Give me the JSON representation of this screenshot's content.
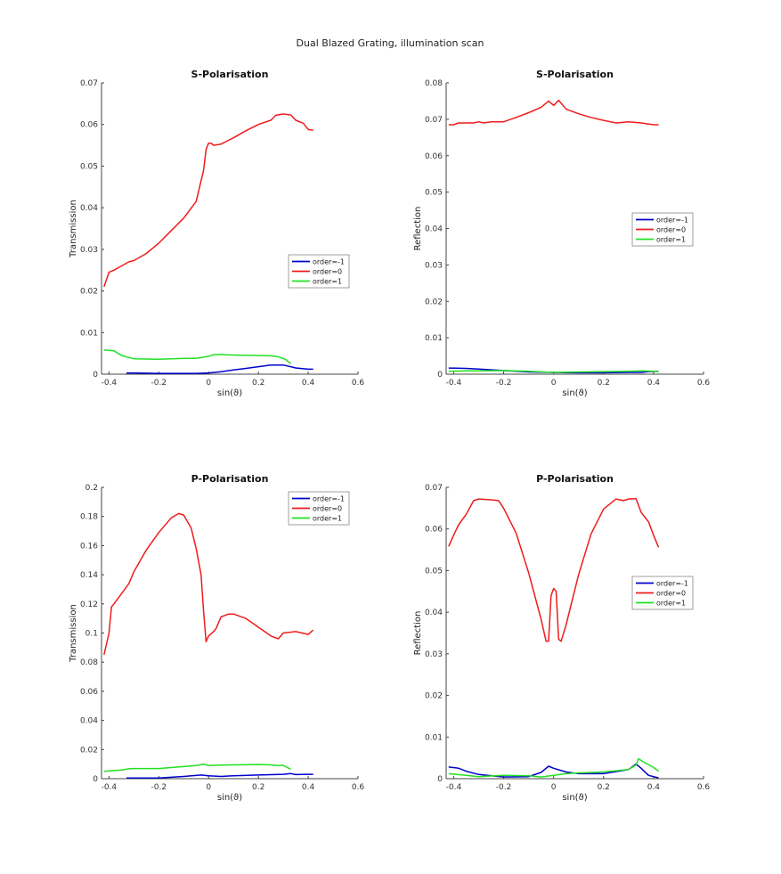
{
  "figure": {
    "title": "Dual Blazed Grating, illumination scan"
  },
  "colors": {
    "order_m1": "#0000cc",
    "order_0": "#ee1c1c",
    "order_p1": "#22e022",
    "axis": "#444444"
  },
  "chart_data": [
    {
      "type": "line",
      "title": "S-Polarisation",
      "xlabel": "sin(ϑ)",
      "ylabel": "Transmission",
      "xlim": [
        -0.43,
        0.6
      ],
      "ylim": [
        0,
        0.07
      ],
      "xticks": [
        "-0.4",
        "-0.2",
        "0",
        "0.2",
        "0.4",
        "0.6"
      ],
      "xtick_values": [
        -0.4,
        -0.2,
        0,
        0.2,
        0.4,
        0.6
      ],
      "yticks": [
        "0",
        "0.01",
        "0.02",
        "0.03",
        "0.04",
        "0.05",
        "0.06",
        "0.07"
      ],
      "ytick_values": [
        0,
        0.01,
        0.02,
        0.03,
        0.04,
        0.05,
        0.06,
        0.07
      ],
      "grid": false,
      "legend": "center-right",
      "series": [
        {
          "name": "order=-1",
          "color": "#0000cc",
          "x": [
            -0.33,
            -0.3,
            -0.2,
            -0.1,
            -0.05,
            0,
            0.05,
            0.1,
            0.15,
            0.2,
            0.25,
            0.3,
            0.35,
            0.4,
            0.42
          ],
          "y": [
            0.0003,
            0.0003,
            0.0002,
            0.0002,
            0.0002,
            0.0003,
            0.0006,
            0.001,
            0.0014,
            0.0018,
            0.0022,
            0.0022,
            0.0015,
            0.0012,
            0.0012
          ]
        },
        {
          "name": "order=0",
          "color": "#ee1c1c",
          "x": [
            -0.42,
            -0.4,
            -0.38,
            -0.35,
            -0.32,
            -0.3,
            -0.25,
            -0.2,
            -0.15,
            -0.1,
            -0.05,
            -0.02,
            -0.01,
            0,
            0.01,
            0.02,
            0.05,
            0.1,
            0.15,
            0.2,
            0.25,
            0.27,
            0.3,
            0.33,
            0.35,
            0.38,
            0.4,
            0.42
          ],
          "y": [
            0.021,
            0.0245,
            0.025,
            0.026,
            0.027,
            0.0273,
            0.029,
            0.0315,
            0.0345,
            0.0375,
            0.0415,
            0.049,
            0.054,
            0.0555,
            0.0555,
            0.055,
            0.0553,
            0.0568,
            0.0585,
            0.06,
            0.061,
            0.0622,
            0.0625,
            0.0623,
            0.061,
            0.0603,
            0.0588,
            0.0586
          ]
        },
        {
          "name": "order=1",
          "color": "#22e022",
          "x": [
            -0.42,
            -0.38,
            -0.35,
            -0.3,
            -0.2,
            -0.1,
            -0.05,
            0,
            0.02,
            0.05,
            0.1,
            0.2,
            0.25,
            0.28,
            0.31,
            0.33
          ],
          "y": [
            0.0058,
            0.0056,
            0.0045,
            0.0037,
            0.0036,
            0.0038,
            0.0038,
            0.0043,
            0.0047,
            0.0047,
            0.0046,
            0.0045,
            0.0044,
            0.0042,
            0.0035,
            0.0025
          ]
        }
      ]
    },
    {
      "type": "line",
      "title": "S-Polarisation",
      "xlabel": "sin(ϑ)",
      "ylabel": "Reflection",
      "xlim": [
        -0.43,
        0.6
      ],
      "ylim": [
        0,
        0.08
      ],
      "xticks": [
        "-0.4",
        "-0.2",
        "0",
        "0.2",
        "0.4",
        "0.6"
      ],
      "xtick_values": [
        -0.4,
        -0.2,
        0,
        0.2,
        0.4,
        0.6
      ],
      "yticks": [
        "0",
        "0.01",
        "0.02",
        "0.03",
        "0.04",
        "0.05",
        "0.06",
        "0.07",
        "0.08"
      ],
      "ytick_values": [
        0,
        0.01,
        0.02,
        0.03,
        0.04,
        0.05,
        0.06,
        0.07,
        0.08
      ],
      "grid": false,
      "legend": "center-right",
      "series": [
        {
          "name": "order=-1",
          "color": "#0000cc",
          "x": [
            -0.42,
            -0.35,
            -0.3,
            -0.2,
            -0.1,
            0,
            0.1,
            0.2,
            0.3,
            0.35,
            0.38,
            0.42
          ],
          "y": [
            0.0017,
            0.0016,
            0.0014,
            0.001,
            0.0006,
            0.0005,
            0.0004,
            0.0004,
            0.0005,
            0.0005,
            0.0007,
            0.0008
          ]
        },
        {
          "name": "order=0",
          "color": "#ee1c1c",
          "x": [
            -0.42,
            -0.4,
            -0.38,
            -0.35,
            -0.32,
            -0.3,
            -0.28,
            -0.25,
            -0.22,
            -0.2,
            -0.15,
            -0.1,
            -0.05,
            -0.02,
            0,
            0.02,
            0.05,
            0.1,
            0.15,
            0.2,
            0.25,
            0.3,
            0.35,
            0.4,
            0.42
          ],
          "y": [
            0.0685,
            0.0685,
            0.069,
            0.069,
            0.069,
            0.0693,
            0.069,
            0.0693,
            0.0693,
            0.0693,
            0.0705,
            0.0718,
            0.0733,
            0.075,
            0.0738,
            0.0752,
            0.0728,
            0.0715,
            0.0705,
            0.0697,
            0.069,
            0.0693,
            0.069,
            0.0685,
            0.0685
          ]
        },
        {
          "name": "order=1",
          "color": "#22e022",
          "x": [
            -0.42,
            -0.35,
            -0.3,
            -0.2,
            -0.1,
            0,
            0.1,
            0.2,
            0.3,
            0.35,
            0.4,
            0.42
          ],
          "y": [
            0.0008,
            0.0009,
            0.0009,
            0.001,
            0.0008,
            0.0005,
            0.0006,
            0.0007,
            0.0008,
            0.0009,
            0.0008,
            0.0007
          ]
        }
      ]
    },
    {
      "type": "line",
      "title": "P-Polarisation",
      "xlabel": "sin(ϑ)",
      "ylabel": "Transmission",
      "xlim": [
        -0.43,
        0.6
      ],
      "ylim": [
        0,
        0.2
      ],
      "xticks": [
        "-0.4",
        "-0.2",
        "0",
        "0.2",
        "0.4",
        "0.6"
      ],
      "xtick_values": [
        -0.4,
        -0.2,
        0,
        0.2,
        0.4,
        0.6
      ],
      "yticks": [
        "0",
        "0.02",
        "0.04",
        "0.06",
        "0.08",
        "0.1",
        "0.12",
        "0.14",
        "0.16",
        "0.18",
        "0.2"
      ],
      "ytick_values": [
        0,
        0.02,
        0.04,
        0.06,
        0.08,
        0.1,
        0.12,
        0.14,
        0.16,
        0.18,
        0.2
      ],
      "grid": false,
      "legend": "top-right",
      "series": [
        {
          "name": "order=-1",
          "color": "#0000cc",
          "x": [
            -0.33,
            -0.3,
            -0.2,
            -0.1,
            -0.03,
            0,
            0.05,
            0.1,
            0.2,
            0.3,
            0.33,
            0.35,
            0.4,
            0.42
          ],
          "y": [
            0.0005,
            0.0005,
            0.0005,
            0.0015,
            0.0025,
            0.002,
            0.0015,
            0.002,
            0.0025,
            0.003,
            0.0035,
            0.0028,
            0.003,
            0.003
          ]
        },
        {
          "name": "order=0",
          "color": "#ee1c1c",
          "x": [
            -0.42,
            -0.4,
            -0.39,
            -0.38,
            -0.35,
            -0.32,
            -0.3,
            -0.25,
            -0.2,
            -0.15,
            -0.12,
            -0.1,
            -0.07,
            -0.05,
            -0.03,
            -0.02,
            -0.01,
            0,
            0.02,
            0.03,
            0.05,
            0.08,
            0.1,
            0.15,
            0.2,
            0.25,
            0.28,
            0.3,
            0.35,
            0.4,
            0.42
          ],
          "y": [
            0.085,
            0.1,
            0.118,
            0.12,
            0.127,
            0.134,
            0.142,
            0.157,
            0.169,
            0.179,
            0.182,
            0.181,
            0.172,
            0.158,
            0.14,
            0.115,
            0.094,
            0.098,
            0.101,
            0.103,
            0.111,
            0.113,
            0.113,
            0.11,
            0.104,
            0.098,
            0.096,
            0.1,
            0.101,
            0.099,
            0.102
          ]
        },
        {
          "name": "order=1",
          "color": "#22e022",
          "x": [
            -0.42,
            -0.35,
            -0.32,
            -0.3,
            -0.2,
            -0.1,
            -0.05,
            -0.02,
            0,
            0.05,
            0.1,
            0.2,
            0.25,
            0.28,
            0.3,
            0.33
          ],
          "y": [
            0.005,
            0.006,
            0.0068,
            0.007,
            0.007,
            0.0083,
            0.009,
            0.01,
            0.009,
            0.0093,
            0.0095,
            0.0097,
            0.0095,
            0.009,
            0.0092,
            0.0065
          ]
        }
      ]
    },
    {
      "type": "line",
      "title": "P-Polarisation",
      "xlabel": "sin(ϑ)",
      "ylabel": "Reflection",
      "xlim": [
        -0.43,
        0.6
      ],
      "ylim": [
        0,
        0.07
      ],
      "xticks": [
        "-0.4",
        "-0.2",
        "0",
        "0.2",
        "0.4",
        "0.6"
      ],
      "xtick_values": [
        -0.4,
        -0.2,
        0,
        0.2,
        0.4,
        0.6
      ],
      "yticks": [
        "0",
        "0.01",
        "0.02",
        "0.03",
        "0.04",
        "0.05",
        "0.06",
        "0.07"
      ],
      "ytick_values": [
        0,
        0.01,
        0.02,
        0.03,
        0.04,
        0.05,
        0.06,
        0.07
      ],
      "grid": false,
      "legend": "center-right",
      "series": [
        {
          "name": "order=-1",
          "color": "#0000cc",
          "x": [
            -0.42,
            -0.38,
            -0.35,
            -0.3,
            -0.2,
            -0.1,
            -0.05,
            -0.02,
            0,
            0.05,
            0.1,
            0.2,
            0.3,
            0.33,
            0.35,
            0.38,
            0.42
          ],
          "y": [
            0.0028,
            0.0025,
            0.0018,
            0.001,
            0.0004,
            0.0005,
            0.0015,
            0.003,
            0.0025,
            0.0016,
            0.0012,
            0.0012,
            0.0022,
            0.0035,
            0.0025,
            0.0008,
            0.0002
          ]
        },
        {
          "name": "order=1",
          "color": "#22e022",
          "x": [
            -0.42,
            -0.35,
            -0.3,
            -0.2,
            -0.1,
            -0.05,
            0,
            0.05,
            0.1,
            0.2,
            0.3,
            0.33,
            0.34,
            0.36,
            0.4,
            0.42
          ],
          "y": [
            0.0012,
            0.0008,
            0.0005,
            0.0008,
            0.0007,
            0.0004,
            0.0008,
            0.0012,
            0.0014,
            0.0016,
            0.0022,
            0.0033,
            0.0048,
            0.004,
            0.0027,
            0.0018
          ]
        },
        {
          "name": "order=0",
          "color": "#ee1c1c",
          "x": [
            -0.42,
            -0.4,
            -0.38,
            -0.35,
            -0.32,
            -0.3,
            -0.25,
            -0.22,
            -0.2,
            -0.15,
            -0.1,
            -0.05,
            -0.03,
            -0.02,
            -0.01,
            0,
            0.01,
            0.02,
            0.03,
            0.05,
            0.1,
            0.15,
            0.2,
            0.25,
            0.28,
            0.3,
            0.33,
            0.35,
            0.38,
            0.4,
            0.42
          ],
          "y": [
            0.0558,
            0.0585,
            0.061,
            0.0635,
            0.0668,
            0.0672,
            0.067,
            0.0668,
            0.065,
            0.059,
            0.0495,
            0.0383,
            0.033,
            0.033,
            0.044,
            0.0457,
            0.045,
            0.0335,
            0.033,
            0.037,
            0.049,
            0.0588,
            0.0648,
            0.0672,
            0.0668,
            0.0672,
            0.0673,
            0.064,
            0.0617,
            0.0585,
            0.0556
          ]
        }
      ]
    }
  ]
}
